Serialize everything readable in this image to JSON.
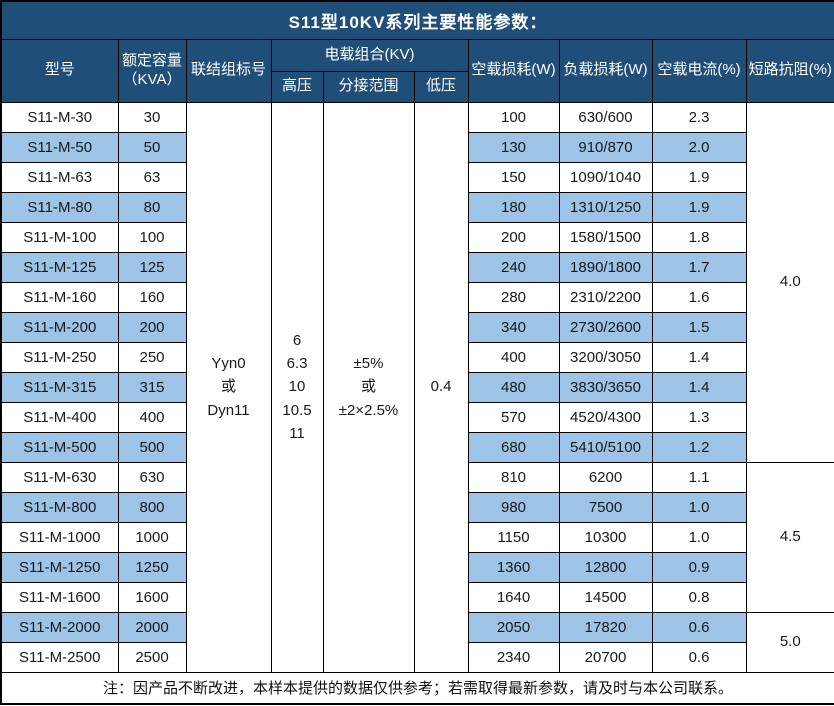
{
  "title": "S11型10KV系列主要性能参数：",
  "colors": {
    "header_bg": "#1F4E79",
    "row_alt_bg": "#9DC3E6",
    "border": "#000000",
    "title_divider": "#d9d9d9"
  },
  "header": {
    "model": "型号",
    "capacity_line1": "额定容量",
    "capacity_line2": "（KVA）",
    "connection": "联结组标号",
    "voltage_group": "电载组合(KV)",
    "high_voltage": "高压",
    "tap_range": "分接范围",
    "low_voltage": "低压",
    "no_load_loss": "空载损耗(W)",
    "load_loss": "负载损耗(W)",
    "no_load_current": "空载电流(%)",
    "impedance": "短路抗阻(%)"
  },
  "merged": {
    "connection": [
      "Yyn0",
      "或",
      "Dyn11"
    ],
    "high_voltage": [
      "6",
      "6.3",
      "10",
      "10.5",
      "11"
    ],
    "tap_range": [
      "±5%",
      "或",
      "±2×2.5%"
    ],
    "low_voltage": "0.4"
  },
  "impedance_groups": [
    {
      "value": "4.0",
      "rows": 12
    },
    {
      "value": "4.5",
      "rows": 5
    },
    {
      "value": "5.0",
      "rows": 2
    }
  ],
  "rows": [
    {
      "model": "S11-M-30",
      "capacity": "30",
      "no_load_loss": "100",
      "load_loss": "630/600",
      "no_load_current": "2.3"
    },
    {
      "model": "S11-M-50",
      "capacity": "50",
      "no_load_loss": "130",
      "load_loss": "910/870",
      "no_load_current": "2.0"
    },
    {
      "model": "S11-M-63",
      "capacity": "63",
      "no_load_loss": "150",
      "load_loss": "1090/1040",
      "no_load_current": "1.9"
    },
    {
      "model": "S11-M-80",
      "capacity": "80",
      "no_load_loss": "180",
      "load_loss": "1310/1250",
      "no_load_current": "1.9"
    },
    {
      "model": "S11-M-100",
      "capacity": "100",
      "no_load_loss": "200",
      "load_loss": "1580/1500",
      "no_load_current": "1.8"
    },
    {
      "model": "S11-M-125",
      "capacity": "125",
      "no_load_loss": "240",
      "load_loss": "1890/1800",
      "no_load_current": "1.7"
    },
    {
      "model": "S11-M-160",
      "capacity": "160",
      "no_load_loss": "280",
      "load_loss": "2310/2200",
      "no_load_current": "1.6"
    },
    {
      "model": "S11-M-200",
      "capacity": "200",
      "no_load_loss": "340",
      "load_loss": "2730/2600",
      "no_load_current": "1.5"
    },
    {
      "model": "S11-M-250",
      "capacity": "250",
      "no_load_loss": "400",
      "load_loss": "3200/3050",
      "no_load_current": "1.4"
    },
    {
      "model": "S11-M-315",
      "capacity": "315",
      "no_load_loss": "480",
      "load_loss": "3830/3650",
      "no_load_current": "1.4"
    },
    {
      "model": "S11-M-400",
      "capacity": "400",
      "no_load_loss": "570",
      "load_loss": "4520/4300",
      "no_load_current": "1.3"
    },
    {
      "model": "S11-M-500",
      "capacity": "500",
      "no_load_loss": "680",
      "load_loss": "5410/5100",
      "no_load_current": "1.2"
    },
    {
      "model": "S11-M-630",
      "capacity": "630",
      "no_load_loss": "810",
      "load_loss": "6200",
      "no_load_current": "1.1"
    },
    {
      "model": "S11-M-800",
      "capacity": "800",
      "no_load_loss": "980",
      "load_loss": "7500",
      "no_load_current": "1.0"
    },
    {
      "model": "S11-M-1000",
      "capacity": "1000",
      "no_load_loss": "1150",
      "load_loss": "10300",
      "no_load_current": "1.0"
    },
    {
      "model": "S11-M-1250",
      "capacity": "1250",
      "no_load_loss": "1360",
      "load_loss": "12800",
      "no_load_current": "0.9"
    },
    {
      "model": "S11-M-1600",
      "capacity": "1600",
      "no_load_loss": "1640",
      "load_loss": "14500",
      "no_load_current": "0.8"
    },
    {
      "model": "S11-M-2000",
      "capacity": "2000",
      "no_load_loss": "2050",
      "load_loss": "17820",
      "no_load_current": "0.6"
    },
    {
      "model": "S11-M-2500",
      "capacity": "2500",
      "no_load_loss": "2340",
      "load_loss": "20700",
      "no_load_current": "0.6"
    }
  ],
  "note": "注：因产品不断改进，本样本提供的数据仅供参考；若需取得最新参数，请及时与本公司联系。"
}
